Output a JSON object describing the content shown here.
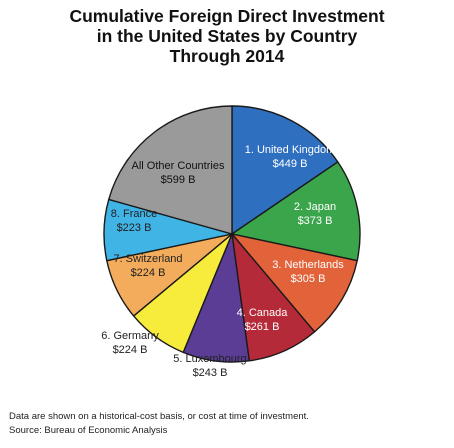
{
  "title_lines": [
    "Cumulative Foreign Direct Investment",
    "in the United States by Country",
    "Through 2014"
  ],
  "chart_data": {
    "type": "pie",
    "title": "Cumulative Foreign Direct Investment in the United States by Country Through 2014",
    "unit": "$ B",
    "start_angle_deg": 0,
    "direction": "clockwise",
    "slices": [
      {
        "name": "1. United Kingdom",
        "value_label": "$449 B",
        "value": 449,
        "color": "#2e6fc0",
        "label_color": "#ffffff",
        "label_position": "inside"
      },
      {
        "name": "2. Japan",
        "value_label": "$373 B",
        "value": 373,
        "color": "#3aa54a",
        "label_color": "#ffffff",
        "label_position": "inside"
      },
      {
        "name": "3. Netherlands",
        "value_label": "$305 B",
        "value": 305,
        "color": "#e2623a",
        "label_color": "#ffffff",
        "label_position": "inside"
      },
      {
        "name": "4. Canada",
        "value_label": "$261 B",
        "value": 261,
        "color": "#b52a38",
        "label_color": "#ffffff",
        "label_position": "inside"
      },
      {
        "name": "5. Luxembourg",
        "value_label": "$243 B",
        "value": 243,
        "color": "#5b3d96",
        "label_color": "#222222",
        "label_position": "outside"
      },
      {
        "name": "6. Germany",
        "value_label": "$224 B",
        "value": 224,
        "color": "#f7ec3c",
        "label_color": "#222222",
        "label_position": "outside"
      },
      {
        "name": "7. Switzerland",
        "value_label": "$224 B",
        "value": 224,
        "color": "#f3ac5c",
        "label_color": "#222222",
        "label_position": "inside"
      },
      {
        "name": "8. France",
        "value_label": "$223 B",
        "value": 223,
        "color": "#41b4e6",
        "label_color": "#222222",
        "label_position": "inside"
      },
      {
        "name": "All Other Countries",
        "value_label": "$599 B",
        "value": 599,
        "color": "#9a9a9a",
        "label_color": "#111111",
        "label_position": "inside"
      }
    ]
  },
  "footnote": "Data are shown on a historical-cost basis, or cost at time of investment.",
  "source": "Source: Bureau of Economic Analysis"
}
